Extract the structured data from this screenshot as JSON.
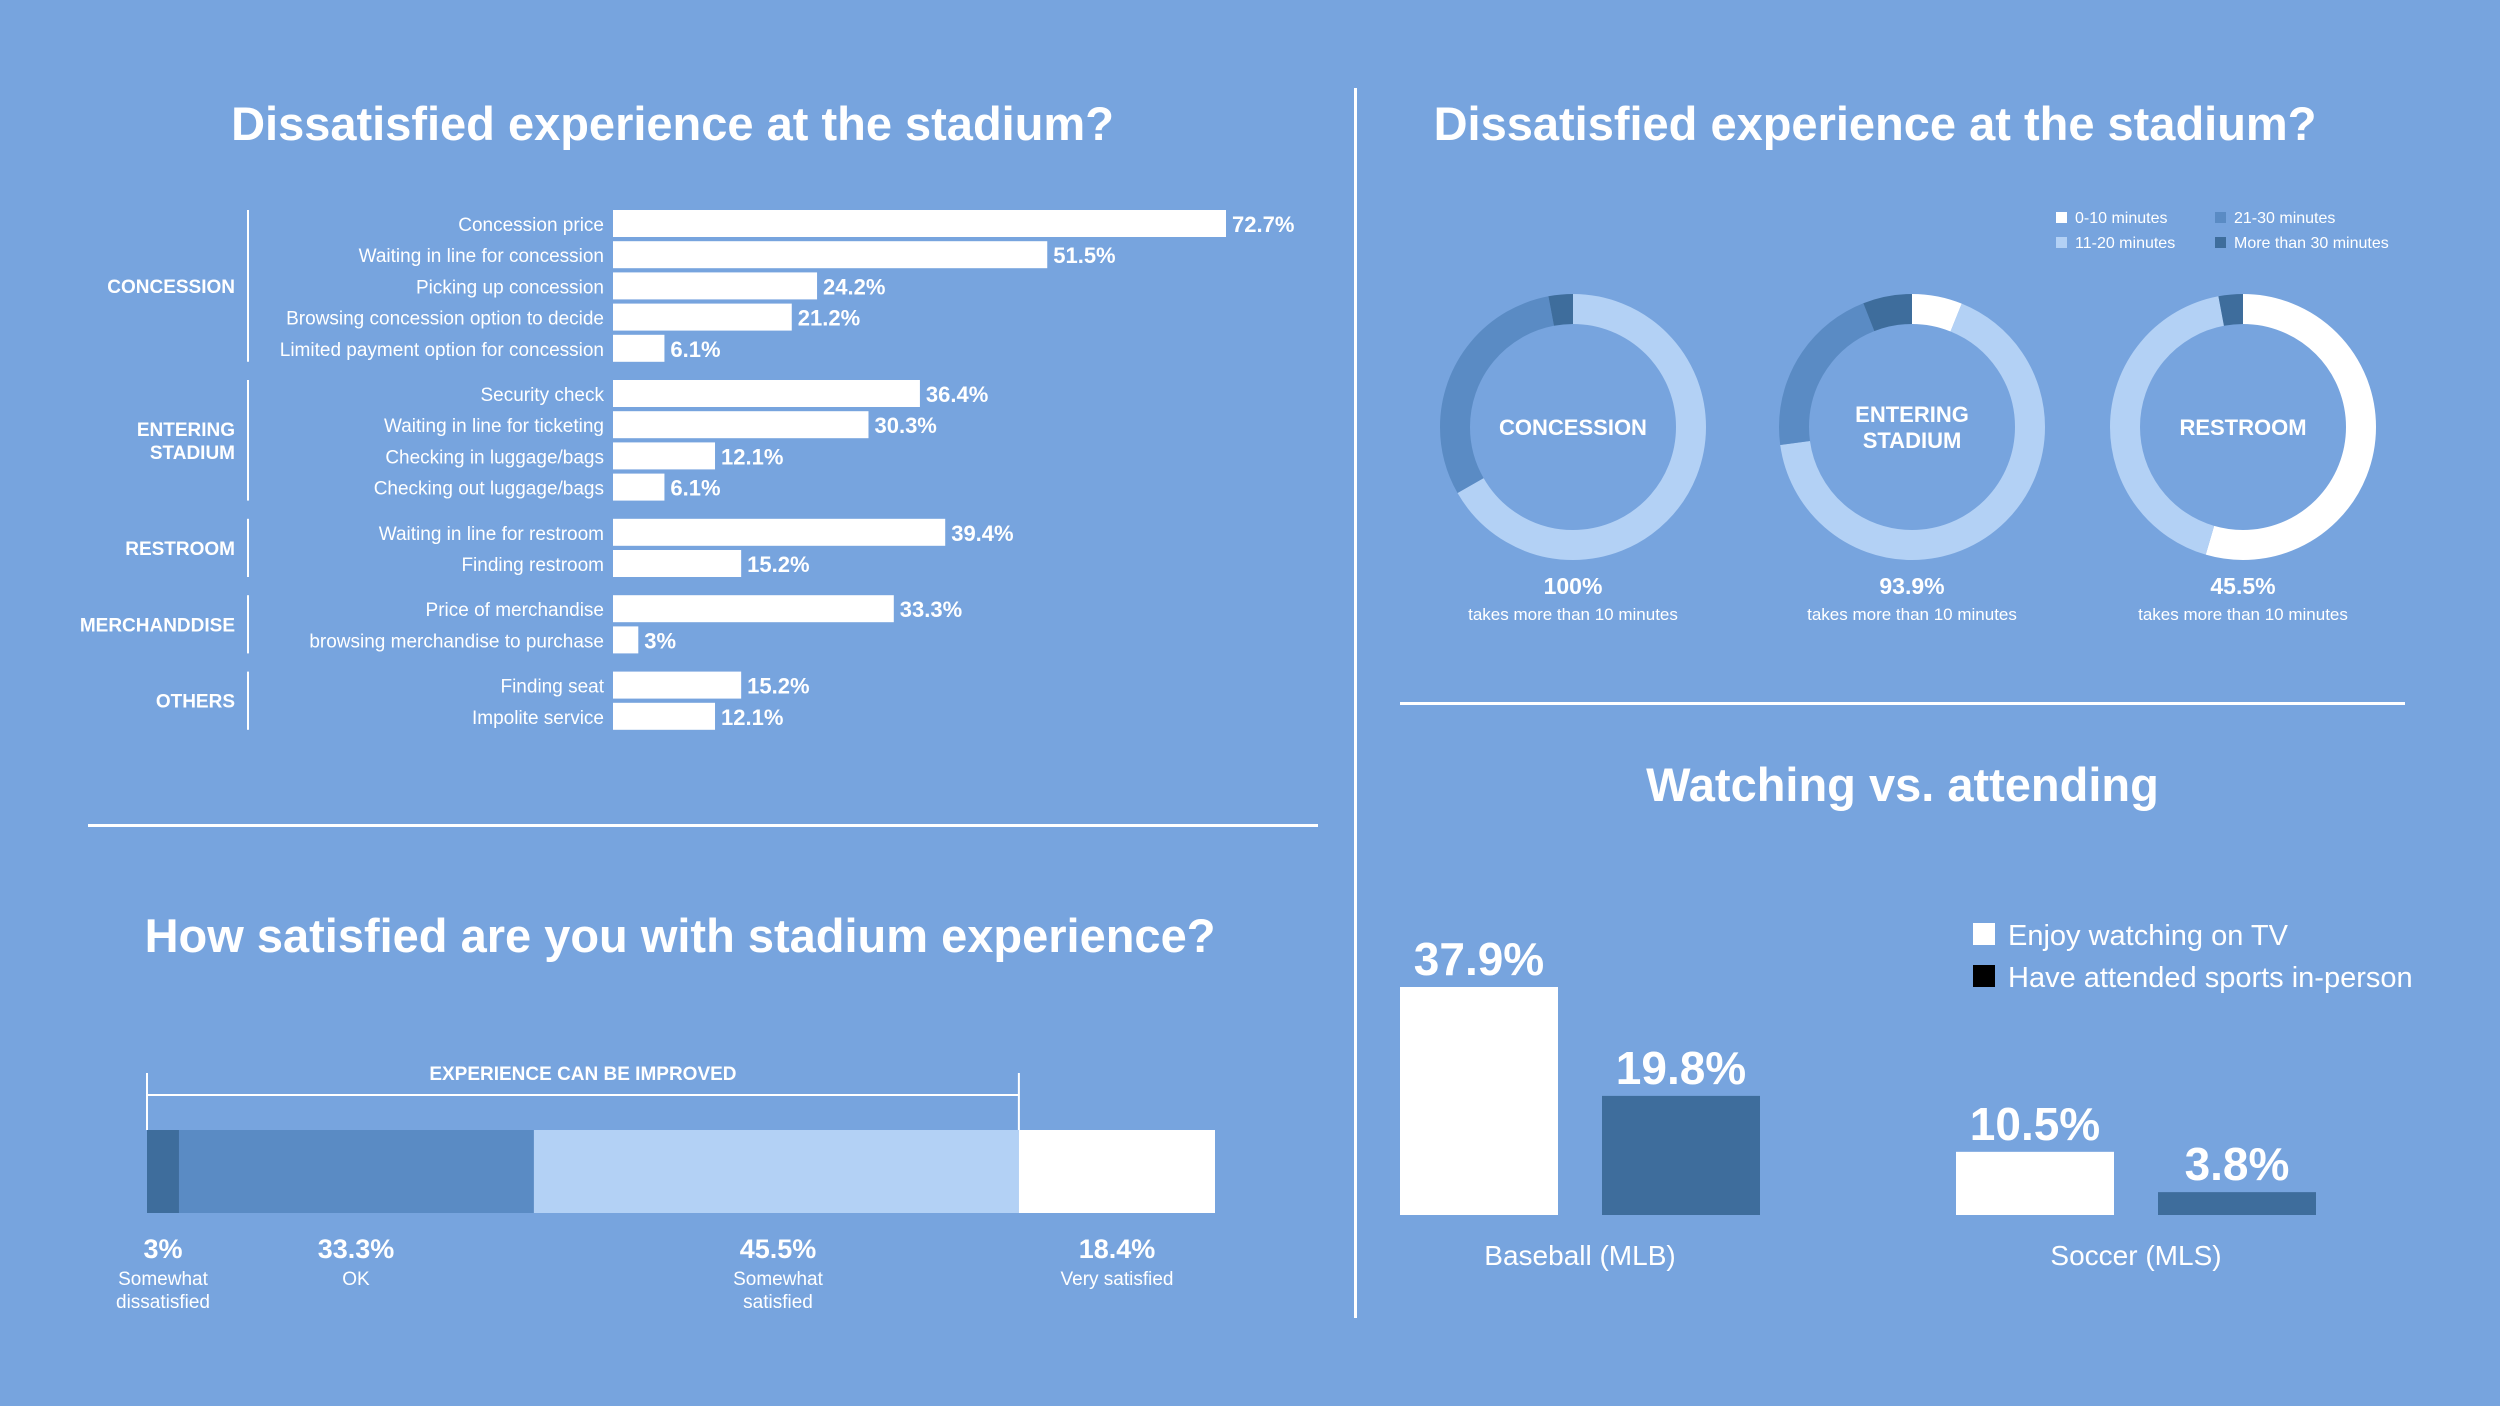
{
  "panels": {
    "top_left_title": "Dissatisfied experience at the stadium?",
    "top_right_title": "Dissatisfied experience at the stadium?",
    "bottom_left_title": "How satisfied are you with stadium experience?",
    "bottom_right_title": "Watching vs. attending"
  },
  "colors": {
    "background": "#77a4de",
    "white": "#ffffff",
    "light": "#b3d1f5",
    "mid": "#5a8bc4",
    "dark": "#3e6d9c"
  },
  "chart_data": [
    {
      "type": "bar",
      "orientation": "horizontal",
      "title": "Dissatisfied experience at the stadium?",
      "xlim": [
        0,
        72.7
      ],
      "groups": [
        {
          "name": "CONCESSION",
          "items": [
            {
              "label": "Concession price",
              "value": 72.7,
              "value_label": "72.7%"
            },
            {
              "label": "Waiting in line for concession",
              "value": 51.5,
              "value_label": "51.5%"
            },
            {
              "label": "Picking up concession",
              "value": 24.2,
              "value_label": "24.2%"
            },
            {
              "label": "Browsing concession option to decide",
              "value": 21.2,
              "value_label": "21.2%"
            },
            {
              "label": "Limited payment option for concession",
              "value": 6.1,
              "value_label": "6.1%"
            }
          ]
        },
        {
          "name": "ENTERING STADIUM",
          "name_lines": [
            "ENTERING",
            "STADIUM"
          ],
          "items": [
            {
              "label": "Security check",
              "value": 36.4,
              "value_label": "36.4%"
            },
            {
              "label": "Waiting in line for ticketing",
              "value": 30.3,
              "value_label": "30.3%"
            },
            {
              "label": "Checking in luggage/bags",
              "value": 12.1,
              "value_label": "12.1%"
            },
            {
              "label": "Checking out luggage/bags",
              "value": 6.1,
              "value_label": "6.1%"
            }
          ]
        },
        {
          "name": "RESTROOM",
          "items": [
            {
              "label": "Waiting in line for restroom",
              "value": 39.4,
              "value_label": "39.4%"
            },
            {
              "label": "Finding restroom",
              "value": 15.2,
              "value_label": "15.2%"
            }
          ]
        },
        {
          "name": "MERCHANDDISE",
          "items": [
            {
              "label": "Price of merchandise",
              "value": 33.3,
              "value_label": "33.3%"
            },
            {
              "label": "browsing merchandise to purchase",
              "value": 3,
              "value_label": "3%"
            }
          ]
        },
        {
          "name": "OTHERS",
          "items": [
            {
              "label": "Finding seat",
              "value": 15.2,
              "value_label": "15.2%"
            },
            {
              "label": "Impolite service",
              "value": 12.1,
              "value_label": "12.1%"
            }
          ]
        }
      ]
    },
    {
      "type": "pie",
      "variant": "donut",
      "title": "Dissatisfied experience at the stadium?",
      "legend": {
        "placement": "top-right",
        "entries": [
          {
            "label": "0-10 minutes",
            "color": "#ffffff"
          },
          {
            "label": "21-30 minutes",
            "color": "#5a8bc4"
          },
          {
            "label": "11-20 minutes",
            "color": "#b3d1f5"
          },
          {
            "label": "More than 30 minutes",
            "color": "#3e6d9c"
          }
        ]
      },
      "donuts": [
        {
          "center_label": [
            "CONCESSION"
          ],
          "value_label": "100%",
          "caption": "takes more than 10 minutes",
          "segments": [
            {
              "category": "0-10 minutes",
              "value": 0,
              "color": "#ffffff"
            },
            {
              "category": "11-20 minutes",
              "value": 66.7,
              "color": "#b3d1f5"
            },
            {
              "category": "21-30 minutes",
              "value": 30.3,
              "color": "#5a8bc4"
            },
            {
              "category": "More than 30 minutes",
              "value": 3.0,
              "color": "#3e6d9c"
            }
          ]
        },
        {
          "center_label": [
            "ENTERING",
            "STADIUM"
          ],
          "value_label": "93.9%",
          "caption": "takes more than 10 minutes",
          "segments": [
            {
              "category": "0-10 minutes",
              "value": 6.1,
              "color": "#ffffff"
            },
            {
              "category": "11-20 minutes",
              "value": 66.7,
              "color": "#b3d1f5"
            },
            {
              "category": "21-30 minutes",
              "value": 21.2,
              "color": "#5a8bc4"
            },
            {
              "category": "More than 30 minutes",
              "value": 6.0,
              "color": "#3e6d9c"
            }
          ]
        },
        {
          "center_label": [
            "RESTROOM"
          ],
          "value_label": "45.5%",
          "caption": "takes more than 10 minutes",
          "segments": [
            {
              "category": "0-10 minutes",
              "value": 54.5,
              "color": "#ffffff"
            },
            {
              "category": "11-20 minutes",
              "value": 42.5,
              "color": "#b3d1f5"
            },
            {
              "category": "21-30 minutes",
              "value": 0,
              "color": "#5a8bc4"
            },
            {
              "category": "More than 30 minutes",
              "value": 3.0,
              "color": "#3e6d9c"
            }
          ]
        }
      ]
    },
    {
      "type": "bar",
      "orientation": "stacked-horizontal",
      "title": "How satisfied are you with stadium experience?",
      "bracket_label": "EXPERIENCE CAN BE IMPROVED",
      "segments": [
        {
          "label": [
            "Somewhat",
            "dissatisfied"
          ],
          "value": 3,
          "value_label": "3%",
          "color": "#3e6d9c"
        },
        {
          "label": [
            "OK"
          ],
          "value": 33.3,
          "value_label": "33.3%",
          "color": "#5a8bc4"
        },
        {
          "label": [
            "Somewhat",
            "satisfied"
          ],
          "value": 45.5,
          "value_label": "45.5%",
          "color": "#b3d1f5"
        },
        {
          "label": [
            "Very satisfied"
          ],
          "value": 18.4,
          "value_label": "18.4%",
          "color": "#ffffff"
        }
      ]
    },
    {
      "type": "bar",
      "title": "Watching vs. attending",
      "categories": [
        "Baseball (MLB)",
        "Soccer (MLS)"
      ],
      "legend": {
        "placement": "top-right"
      },
      "ylim": [
        0,
        37.9
      ],
      "series": [
        {
          "name": "Enjoy watching on TV",
          "color": "#ffffff",
          "values": [
            37.9,
            10.5
          ],
          "value_labels": [
            "37.9%",
            "10.5%"
          ]
        },
        {
          "name": "Have attended sports in-person",
          "color": "#3e6d9c",
          "legend_swatch": "#000000",
          "values": [
            19.8,
            3.8
          ],
          "value_labels": [
            "19.8%",
            "3.8%"
          ]
        }
      ]
    }
  ]
}
